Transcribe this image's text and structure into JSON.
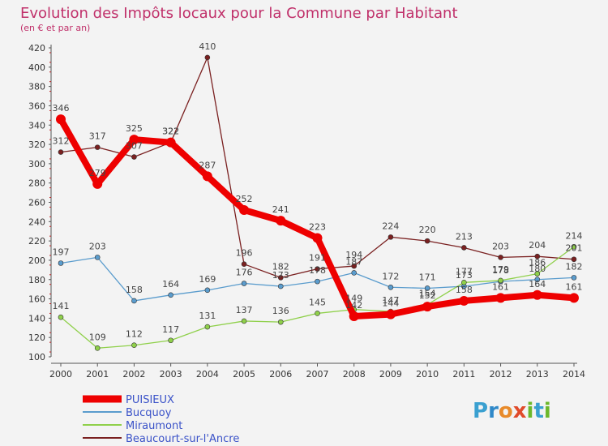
{
  "header": {
    "title": "Evolution des Impôts locaux pour la Commune par Habitant",
    "subtitle": "(en € et par an)"
  },
  "brand": {
    "text": "Proxiti",
    "letters": [
      "P",
      "r",
      "o",
      "x",
      "i",
      "t",
      "i"
    ],
    "colors": [
      "#3aa0d0",
      "#2f88c8",
      "#e88a2a",
      "#e04a2a",
      "#6bb82a",
      "#3aa0d0",
      "#6bb82a"
    ]
  },
  "chart_data": {
    "type": "line",
    "title": "Evolution des Impôts locaux pour la Commune par Habitant",
    "subtitle": "(en € et par an)",
    "xlabel": "",
    "ylabel": "",
    "x": [
      "2000",
      "2001",
      "2002",
      "2003",
      "2004",
      "2005",
      "2006",
      "2007",
      "2008",
      "2009",
      "2010",
      "2011",
      "2012",
      "2013",
      "2014"
    ],
    "ylim": [
      100,
      420
    ],
    "yticks": [
      100,
      120,
      140,
      160,
      180,
      200,
      220,
      240,
      260,
      280,
      300,
      320,
      340,
      360,
      380,
      400,
      420
    ],
    "grid": false,
    "legend_position": "bottom-left",
    "series": [
      {
        "name": "PUISIEUX",
        "color": "#ee0000",
        "values": [
          346,
          279,
          325,
          322,
          287,
          252,
          241,
          223,
          142,
          144,
          152,
          158,
          161,
          164,
          161
        ],
        "labels": [
          "346",
          "279",
          "325",
          "322",
          "287",
          "252",
          "241",
          "223",
          "142",
          "144",
          "152",
          "158",
          "161",
          "164",
          "161"
        ]
      },
      {
        "name": "Bucquoy",
        "color": "#5a9ccd",
        "values": [
          197,
          203,
          158,
          164,
          169,
          176,
          173,
          178,
          187,
          172,
          171,
          173,
          178,
          180,
          182
        ],
        "labels": [
          "197",
          "203",
          "158",
          "164",
          "169",
          "176",
          "173",
          "178",
          "187",
          "172",
          "171",
          "173",
          "178",
          "180",
          "182"
        ]
      },
      {
        "name": "Miraumont",
        "color": "#8fd04a",
        "values": [
          141,
          109,
          112,
          117,
          131,
          137,
          136,
          145,
          149,
          147,
          154,
          177,
          179,
          186,
          214
        ],
        "labels": [
          "141",
          "109",
          "112",
          "117",
          "131",
          "137",
          "136",
          "145",
          "149",
          "147",
          "154",
          "177",
          "179",
          "186",
          "214"
        ]
      },
      {
        "name": "Beaucourt-sur-l'Ancre",
        "color": "#7a2020",
        "values": [
          312,
          317,
          307,
          322,
          410,
          196,
          182,
          191,
          194,
          224,
          220,
          213,
          203,
          204,
          201
        ],
        "labels": [
          "312",
          "317",
          "307",
          "322",
          "410",
          "196",
          "182",
          "191",
          "194",
          "224",
          "220",
          "213",
          "203",
          "204",
          "201"
        ]
      }
    ]
  }
}
